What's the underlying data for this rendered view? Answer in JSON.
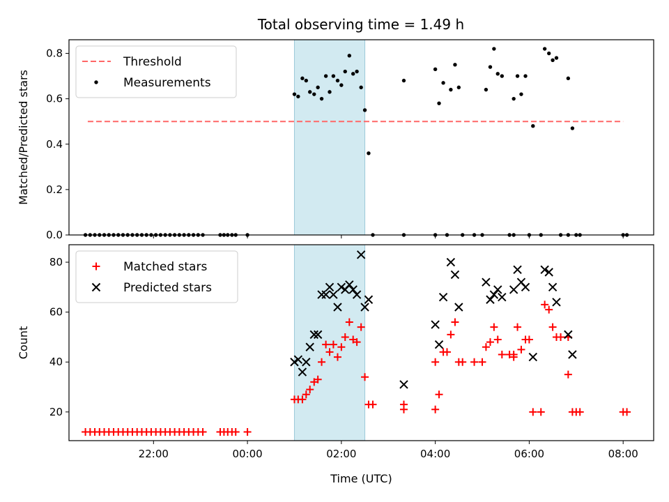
{
  "title": "Total observing time = 1.49 h",
  "chart_data": [
    {
      "type": "scatter",
      "panel": "ratio",
      "xlabel": "",
      "ylabel": "Matched/Predicted stars",
      "xlim": [
        20.2,
        32.65
      ],
      "ylim": [
        0,
        0.86
      ],
      "yticks": [
        0.0,
        0.2,
        0.4,
        0.6,
        0.8
      ],
      "ytick_labels": [
        "0.0",
        "0.2",
        "0.4",
        "0.6",
        "0.8"
      ],
      "xticks": [
        22,
        24,
        26,
        28,
        30,
        32
      ],
      "legend": "upper-left",
      "highlight": {
        "x_start": 25.0,
        "x_end": 26.5,
        "color": "#add8e6"
      },
      "threshold": {
        "name": "Threshold",
        "value": 0.5,
        "x_start": 20.6,
        "x_end": 32.0,
        "color": "#ff6666"
      },
      "series": [
        {
          "name": "Measurements",
          "marker": "dot",
          "color": "#000000",
          "points": [
            [
              20.55,
              0
            ],
            [
              20.65,
              0
            ],
            [
              20.75,
              0
            ],
            [
              20.85,
              0
            ],
            [
              20.95,
              0
            ],
            [
              21.05,
              0
            ],
            [
              21.15,
              0
            ],
            [
              21.25,
              0
            ],
            [
              21.35,
              0
            ],
            [
              21.45,
              0
            ],
            [
              21.55,
              0
            ],
            [
              21.65,
              0
            ],
            [
              21.75,
              0
            ],
            [
              21.85,
              0
            ],
            [
              21.95,
              0
            ],
            [
              22.05,
              0
            ],
            [
              22.15,
              0
            ],
            [
              22.25,
              0
            ],
            [
              22.35,
              0
            ],
            [
              22.45,
              0
            ],
            [
              22.55,
              0
            ],
            [
              22.65,
              0
            ],
            [
              22.75,
              0
            ],
            [
              22.85,
              0
            ],
            [
              22.95,
              0
            ],
            [
              23.05,
              0
            ],
            [
              23.42,
              0
            ],
            [
              23.5,
              0
            ],
            [
              23.58,
              0
            ],
            [
              23.67,
              0
            ],
            [
              23.75,
              0
            ],
            [
              24.0,
              0
            ],
            [
              25.0,
              0.62
            ],
            [
              25.08,
              0.61
            ],
            [
              25.17,
              0.69
            ],
            [
              25.25,
              0.68
            ],
            [
              25.33,
              0.63
            ],
            [
              25.42,
              0.62
            ],
            [
              25.5,
              0.65
            ],
            [
              25.58,
              0.6
            ],
            [
              25.67,
              0.7
            ],
            [
              25.75,
              0.63
            ],
            [
              25.83,
              0.7
            ],
            [
              25.92,
              0.68
            ],
            [
              26.0,
              0.66
            ],
            [
              26.08,
              0.72
            ],
            [
              26.17,
              0.79
            ],
            [
              26.25,
              0.71
            ],
            [
              26.33,
              0.72
            ],
            [
              26.42,
              0.65
            ],
            [
              26.5,
              0.55
            ],
            [
              26.58,
              0.36
            ],
            [
              26.67,
              0
            ],
            [
              27.33,
              0.68
            ],
            [
              27.33,
              0
            ],
            [
              28.0,
              0.73
            ],
            [
              28.0,
              0
            ],
            [
              28.08,
              0.58
            ],
            [
              28.17,
              0.67
            ],
            [
              28.25,
              0
            ],
            [
              28.33,
              0.64
            ],
            [
              28.42,
              0.75
            ],
            [
              28.5,
              0.65
            ],
            [
              28.58,
              0
            ],
            [
              28.83,
              0
            ],
            [
              29.0,
              0
            ],
            [
              29.08,
              0.64
            ],
            [
              29.17,
              0.74
            ],
            [
              29.25,
              0.82
            ],
            [
              29.33,
              0.71
            ],
            [
              29.42,
              0.7
            ],
            [
              29.58,
              0
            ],
            [
              29.67,
              0
            ],
            [
              29.67,
              0.6
            ],
            [
              29.75,
              0.7
            ],
            [
              29.83,
              0.62
            ],
            [
              29.92,
              0.7
            ],
            [
              30.0,
              0
            ],
            [
              30.08,
              0.48
            ],
            [
              30.25,
              0
            ],
            [
              30.33,
              0.82
            ],
            [
              30.42,
              0.8
            ],
            [
              30.5,
              0.77
            ],
            [
              30.58,
              0.78
            ],
            [
              30.67,
              0
            ],
            [
              30.83,
              0.69
            ],
            [
              30.83,
              0
            ],
            [
              30.92,
              0.47
            ],
            [
              31.0,
              0
            ],
            [
              31.08,
              0
            ],
            [
              32.0,
              0
            ],
            [
              32.08,
              0
            ]
          ]
        }
      ]
    },
    {
      "type": "scatter",
      "panel": "counts",
      "xlabel": "Time (UTC)",
      "ylabel": "Count",
      "xlim": [
        20.2,
        32.65
      ],
      "ylim": [
        8.5,
        87
      ],
      "yticks": [
        20,
        40,
        60,
        80
      ],
      "ytick_labels": [
        "20",
        "40",
        "60",
        "80"
      ],
      "xticks": [
        22,
        24,
        26,
        28,
        30,
        32
      ],
      "xtick_labels": [
        "22:00",
        "00:00",
        "02:00",
        "04:00",
        "06:00",
        "08:00"
      ],
      "legend": "upper-left",
      "highlight": {
        "x_start": 25.0,
        "x_end": 26.5,
        "color": "#add8e6"
      },
      "series": [
        {
          "name": "Matched stars",
          "marker": "plus",
          "color": "#ff0000",
          "points": [
            [
              20.55,
              12
            ],
            [
              20.65,
              12
            ],
            [
              20.75,
              12
            ],
            [
              20.85,
              12
            ],
            [
              20.95,
              12
            ],
            [
              21.05,
              12
            ],
            [
              21.15,
              12
            ],
            [
              21.25,
              12
            ],
            [
              21.35,
              12
            ],
            [
              21.45,
              12
            ],
            [
              21.55,
              12
            ],
            [
              21.65,
              12
            ],
            [
              21.75,
              12
            ],
            [
              21.85,
              12
            ],
            [
              21.95,
              12
            ],
            [
              22.05,
              12
            ],
            [
              22.15,
              12
            ],
            [
              22.25,
              12
            ],
            [
              22.35,
              12
            ],
            [
              22.45,
              12
            ],
            [
              22.55,
              12
            ],
            [
              22.65,
              12
            ],
            [
              22.75,
              12
            ],
            [
              22.85,
              12
            ],
            [
              22.95,
              12
            ],
            [
              23.05,
              12
            ],
            [
              23.42,
              12
            ],
            [
              23.5,
              12
            ],
            [
              23.58,
              12
            ],
            [
              23.67,
              12
            ],
            [
              23.75,
              12
            ],
            [
              24.0,
              12
            ],
            [
              25.0,
              25
            ],
            [
              25.08,
              25
            ],
            [
              25.17,
              25
            ],
            [
              25.25,
              27
            ],
            [
              25.33,
              29
            ],
            [
              25.42,
              32
            ],
            [
              25.5,
              33
            ],
            [
              25.58,
              40
            ],
            [
              25.67,
              47
            ],
            [
              25.75,
              44
            ],
            [
              25.83,
              47
            ],
            [
              25.92,
              42
            ],
            [
              26.0,
              46
            ],
            [
              26.08,
              50
            ],
            [
              26.17,
              56
            ],
            [
              26.25,
              49
            ],
            [
              26.33,
              48
            ],
            [
              26.42,
              54
            ],
            [
              26.5,
              34
            ],
            [
              26.58,
              23
            ],
            [
              26.67,
              23
            ],
            [
              27.33,
              21
            ],
            [
              27.33,
              23
            ],
            [
              28.0,
              21
            ],
            [
              28.0,
              40
            ],
            [
              28.08,
              27
            ],
            [
              28.17,
              44
            ],
            [
              28.25,
              44
            ],
            [
              28.33,
              51
            ],
            [
              28.42,
              56
            ],
            [
              28.5,
              40
            ],
            [
              28.58,
              40
            ],
            [
              28.83,
              40
            ],
            [
              29.0,
              40
            ],
            [
              29.08,
              46
            ],
            [
              29.17,
              48
            ],
            [
              29.25,
              54
            ],
            [
              29.33,
              49
            ],
            [
              29.42,
              43
            ],
            [
              29.58,
              43
            ],
            [
              29.67,
              42
            ],
            [
              29.67,
              43
            ],
            [
              29.75,
              54
            ],
            [
              29.83,
              45
            ],
            [
              29.92,
              49
            ],
            [
              30.0,
              49
            ],
            [
              30.08,
              20
            ],
            [
              30.25,
              20
            ],
            [
              30.33,
              63
            ],
            [
              30.42,
              61
            ],
            [
              30.5,
              54
            ],
            [
              30.58,
              50
            ],
            [
              30.67,
              50
            ],
            [
              30.83,
              35
            ],
            [
              30.83,
              50
            ],
            [
              30.92,
              20
            ],
            [
              31.0,
              20
            ],
            [
              31.08,
              20
            ],
            [
              32.0,
              20
            ],
            [
              32.08,
              20
            ]
          ]
        },
        {
          "name": "Predicted stars",
          "marker": "x",
          "color": "#000000",
          "points": [
            [
              25.0,
              40
            ],
            [
              25.08,
              41
            ],
            [
              25.17,
              36
            ],
            [
              25.25,
              40
            ],
            [
              25.33,
              46
            ],
            [
              25.42,
              51
            ],
            [
              25.5,
              51
            ],
            [
              25.58,
              67
            ],
            [
              25.67,
              67
            ],
            [
              25.75,
              70
            ],
            [
              25.83,
              67
            ],
            [
              25.92,
              62
            ],
            [
              26.0,
              70
            ],
            [
              26.08,
              69
            ],
            [
              26.17,
              71
            ],
            [
              26.25,
              69
            ],
            [
              26.33,
              67
            ],
            [
              26.42,
              83
            ],
            [
              26.5,
              62
            ],
            [
              26.58,
              65
            ],
            [
              27.33,
              31
            ],
            [
              28.0,
              55
            ],
            [
              28.08,
              47
            ],
            [
              28.17,
              66
            ],
            [
              28.33,
              80
            ],
            [
              28.42,
              75
            ],
            [
              28.5,
              62
            ],
            [
              29.08,
              72
            ],
            [
              29.17,
              65
            ],
            [
              29.25,
              67
            ],
            [
              29.33,
              69
            ],
            [
              29.42,
              66
            ],
            [
              29.67,
              69
            ],
            [
              29.75,
              77
            ],
            [
              29.83,
              72
            ],
            [
              29.92,
              70
            ],
            [
              30.08,
              42
            ],
            [
              30.33,
              77
            ],
            [
              30.42,
              76
            ],
            [
              30.5,
              70
            ],
            [
              30.58,
              64
            ],
            [
              30.83,
              51
            ],
            [
              30.92,
              43
            ]
          ]
        }
      ]
    }
  ]
}
